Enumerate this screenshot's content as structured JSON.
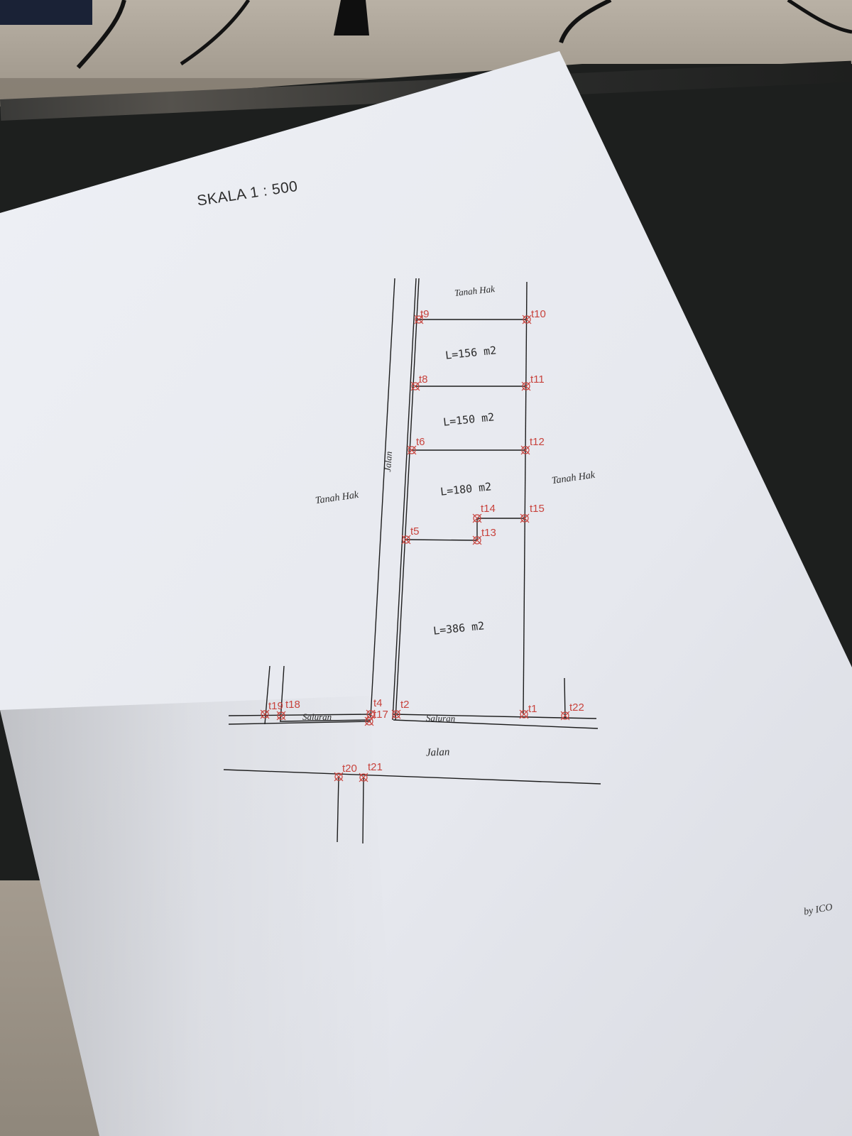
{
  "document": {
    "scale_title": "SKALA  1 : 500",
    "signature": "by ICO"
  },
  "labels": {
    "tanah_hak_top": "Tanah Hak",
    "tanah_hak_left": "Tanah Hak",
    "tanah_hak_right": "Tanah Hak",
    "jalan_vertical": "Jalan",
    "jalan_bottom": "Jalan",
    "saluran_left": "Saluran",
    "saluran_right": "Saluran"
  },
  "areas": [
    {
      "id": "plot-1",
      "text": "L=156 m2"
    },
    {
      "id": "plot-2",
      "text": "L=150 m2"
    },
    {
      "id": "plot-3",
      "text": "L=180 m2"
    },
    {
      "id": "plot-4",
      "text": "L=386 m2"
    }
  ],
  "points": {
    "t1": "t1",
    "t2": "t2",
    "t4": "t4",
    "t5": "t5",
    "t6": "t6",
    "t8": "t8",
    "t9": "t9",
    "t10": "t10",
    "t11": "t11",
    "t12": "t12",
    "t13": "t13",
    "t14": "t14",
    "t15": "t15",
    "t17": "t17",
    "t18": "t18",
    "t19": "t19",
    "t20": "t20",
    "t21": "t21",
    "t22": "t22"
  },
  "colors": {
    "paper": "#eceef3",
    "ink": "#1c1c1c",
    "point_marker": "#c8433d"
  }
}
